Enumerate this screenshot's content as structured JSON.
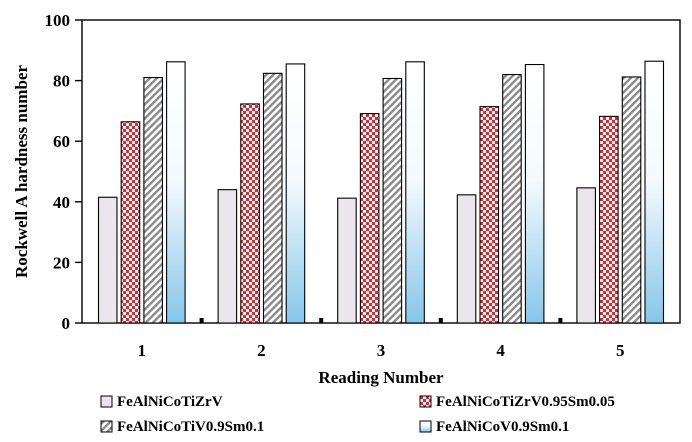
{
  "chart_data": {
    "type": "bar",
    "xlabel": "Reading Number",
    "ylabel": "Rockwell A hardness number",
    "categories": [
      "1",
      "2",
      "3",
      "4",
      "5"
    ],
    "ylim": [
      0,
      100
    ],
    "yticks": [
      0,
      20,
      40,
      60,
      80,
      100
    ],
    "grid": false,
    "legend_position": "bottom",
    "series": [
      {
        "name": "FeAlNiCoTiZrV",
        "values": [
          41.5,
          44.0,
          41.2,
          42.3,
          44.6
        ],
        "fill": "#ebe6ec",
        "pattern": "solid"
      },
      {
        "name": "FeAlNiCoTiZrV0.95Sm0.05",
        "values": [
          66.4,
          72.3,
          69.1,
          71.4,
          68.2
        ],
        "fill": "#e8242b",
        "pattern": "checker"
      },
      {
        "name": "FeAlNiCoTiV0.9Sm0.1",
        "values": [
          81.0,
          82.4,
          80.7,
          82.0,
          81.2
        ],
        "fill": "#8a8a8a",
        "pattern": "diagonal"
      },
      {
        "name": "FeAlNiCoV0.9Sm0.1",
        "values": [
          86.2,
          85.5,
          86.2,
          85.3,
          86.4
        ],
        "fill": "#8ec9ea",
        "pattern": "gradient"
      }
    ]
  }
}
